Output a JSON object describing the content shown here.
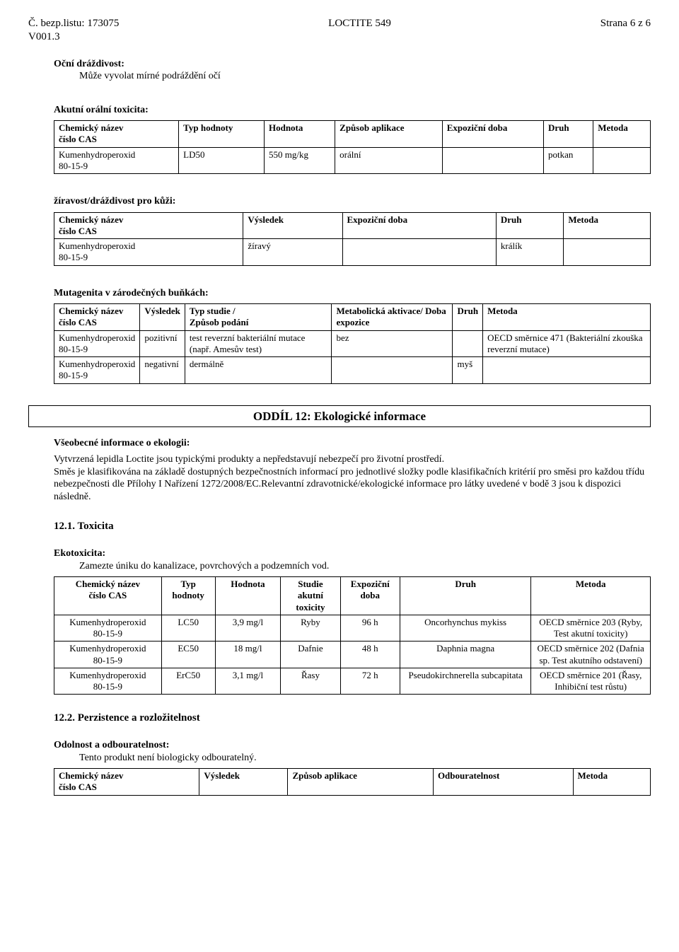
{
  "header": {
    "left": "Č. bezp.listu: 173075",
    "center": "LOCTITE 549",
    "right": "Strana 6 z 6",
    "version": "V001.3"
  },
  "eye": {
    "title": "Oční dráždivost:",
    "text": "Může vyvolat mírné podráždění očí"
  },
  "oral": {
    "title": "Akutní orální toxicita:",
    "cols": [
      "Chemický název\nčíslo CAS",
      "Typ hodnoty",
      "Hodnota",
      "Způsob aplikace",
      "Expoziční doba",
      "Druh",
      "Metoda"
    ],
    "rows": [
      [
        "Kumenhydroperoxid\n80-15-9",
        "LD50",
        "550 mg/kg",
        "orální",
        "",
        "potkan",
        ""
      ]
    ]
  },
  "skin": {
    "title": "žíravost/dráždivost pro kůži:",
    "cols": [
      "Chemický název\nčíslo CAS",
      "Výsledek",
      "Expoziční doba",
      "Druh",
      "Metoda"
    ],
    "rows": [
      [
        "Kumenhydroperoxid\n80-15-9",
        "žíravý",
        "",
        "králík",
        ""
      ]
    ]
  },
  "muta": {
    "title": "Mutagenita v zárodečných buňkách:",
    "cols": [
      "Chemický název\nčíslo CAS",
      "Výsledek",
      "Typ studie /\nZpůsob podání",
      "Metabolická aktivace/ Doba expozice",
      "Druh",
      "Metoda"
    ],
    "rows": [
      [
        "Kumenhydroperoxid\n80-15-9",
        "pozitivní",
        "test reverzní bakteriální mutace (např. Amesův test)",
        "bez",
        "",
        "OECD směrnice 471 (Bakteriální zkouška reverzní mutace)"
      ],
      [
        "Kumenhydroperoxid\n80-15-9",
        "negativní",
        "dermálně",
        "",
        "myš",
        ""
      ]
    ]
  },
  "section12": {
    "title": "ODDÍL 12: Ekologické informace",
    "gen_title": "Všeobecné informace o ekologii:",
    "gen_text": "Vytvrzená lepidla Loctite jsou typickými produkty a nepředstavují nebezpečí pro životní prostředí.\nSměs je klasifikována na základě dostupných bezpečnostních informací pro jednotlivé složky podle klasifikačních kritérií pro směsi pro každou třídu nebezpečnosti dle Přílohy I Nařízení 1272/2008/EC.Relevantní zdravotnické/ekologické informace pro látky uvedené v bodě 3 jsou k dispozici následně."
  },
  "tox": {
    "heading": "12.1. Toxicita",
    "sub": "Ekotoxicita:",
    "text": "Zamezte úniku do kanalizace, povrchových a podzemních vod.",
    "cols": [
      "Chemický název\nčíslo CAS",
      "Typ hodnoty",
      "Hodnota",
      "Studie akutní toxicity",
      "Expoziční doba",
      "Druh",
      "Metoda"
    ],
    "rows": [
      [
        "Kumenhydroperoxid\n80-15-9",
        "LC50",
        "3,9 mg/l",
        "Ryby",
        "96 h",
        "Oncorhynchus mykiss",
        "OECD směrnice 203 (Ryby, Test akutní toxicity)"
      ],
      [
        "Kumenhydroperoxid\n80-15-9",
        "EC50",
        "18 mg/l",
        "Dafnie",
        "48 h",
        "Daphnia magna",
        "OECD směrnice 202 (Dafnia sp. Test akutního odstavení)"
      ],
      [
        "Kumenhydroperoxid\n80-15-9",
        "ErC50",
        "3,1 mg/l",
        "Řasy",
        "72 h",
        "Pseudokirchnerella subcapitata",
        "OECD směrnice 201 (Řasy, Inhibiční test růstu)"
      ]
    ],
    "col_align": [
      "center",
      "center",
      "center",
      "center",
      "center",
      "center",
      "center"
    ]
  },
  "pers": {
    "heading": "12.2. Perzistence a rozložitelnost",
    "sub": "Odolnost a odbouratelnost:",
    "text": "Tento produkt není biologicky odbouratelný.",
    "cols": [
      "Chemický název\nčíslo CAS",
      "Výsledek",
      "Způsob aplikace",
      "Odbouratelnost",
      "Metoda"
    ]
  },
  "table_style": {
    "border_color": "#000000",
    "header_bold": true,
    "fontsize": 13
  }
}
